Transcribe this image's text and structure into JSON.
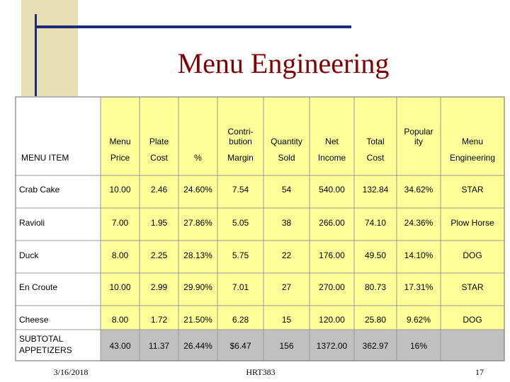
{
  "title": "Menu Engineering",
  "table": {
    "columns": [
      {
        "bottom": "MENU ITEM"
      },
      {
        "top": [
          "Menu"
        ],
        "bottom": "Price"
      },
      {
        "top": [
          "Plate"
        ],
        "bottom": "Cost"
      },
      {
        "bottom": "%"
      },
      {
        "top": [
          "Contri-",
          "bution"
        ],
        "bottom": "Margin"
      },
      {
        "top": [
          "Quantity"
        ],
        "bottom": "Sold"
      },
      {
        "top": [
          "Net"
        ],
        "bottom": "Income"
      },
      {
        "top": [
          "Total"
        ],
        "bottom": "Cost"
      },
      {
        "top": [
          "Popular",
          "ity"
        ]
      },
      {
        "top": [
          "Menu"
        ],
        "bottom": "Engineering"
      }
    ],
    "rows": [
      [
        [
          "Crab Cake"
        ],
        "10.00",
        "2.46",
        "24.60%",
        "7.54",
        "54",
        "540.00",
        "132.84",
        "34.62%",
        "STAR"
      ],
      [
        [
          "Ravioli"
        ],
        "7.00",
        "1.95",
        "27.86%",
        "5.05",
        "38",
        "266.00",
        "74.10",
        "24.36%",
        "Plow Horse"
      ],
      [
        [
          "Duck"
        ],
        "8.00",
        "2.25",
        "28.13%",
        "5.75",
        "22",
        "176.00",
        "49.50",
        "14.10%",
        "DOG"
      ],
      [
        [
          "En Croute"
        ],
        "10.00",
        "2.99",
        "29.90%",
        "7.01",
        "27",
        "270.00",
        "80.73",
        "17.31%",
        "STAR"
      ],
      [
        [
          "Cheese"
        ],
        "8.00",
        "1.72",
        "21.50%",
        "6.28",
        "15",
        "120.00",
        "25.80",
        "9.62%",
        "DOG"
      ],
      [
        [
          "SUBTOTAL",
          "APPETIZERS"
        ],
        "43.00",
        "11.37",
        "26.44%",
        "$6.47",
        "156",
        "1372.00",
        "362.97",
        "16%"
      ]
    ]
  },
  "footer": {
    "date": "3/16/2018",
    "center": "HRT383",
    "page": "17"
  }
}
